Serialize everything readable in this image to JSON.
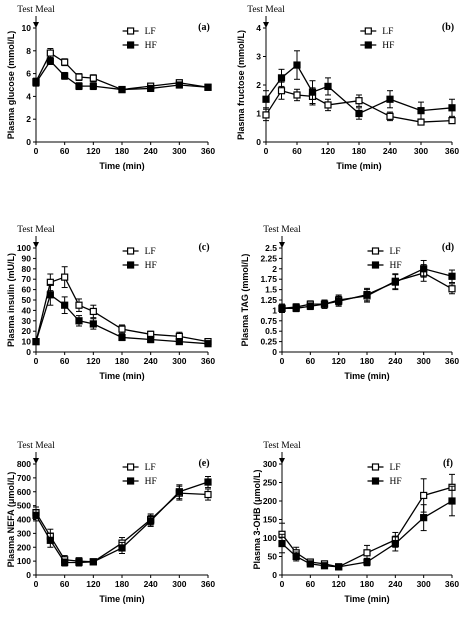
{
  "chart_data": [
    {
      "panel_label": "(a)",
      "type": "line",
      "test_meal_label": "Test Meal",
      "xlabel": "Time (min)",
      "ylabel": "Plasma glucose (mmol/L)",
      "xlim": [
        0,
        360
      ],
      "ylim": [
        0,
        10
      ],
      "xticks": [
        0,
        60,
        120,
        180,
        240,
        300,
        360
      ],
      "yticks": [
        0,
        2,
        4,
        6,
        8,
        10
      ],
      "x": [
        0,
        30,
        60,
        90,
        120,
        180,
        240,
        300,
        360
      ],
      "series": [
        {
          "name": "LF",
          "marker": "open-square",
          "values": [
            5.3,
            7.8,
            7.0,
            5.7,
            5.6,
            4.6,
            4.9,
            5.2,
            4.8
          ],
          "errors": [
            0.3,
            0.4,
            0.3,
            0.3,
            0.3,
            0.2,
            0.2,
            0.2,
            0.2
          ]
        },
        {
          "name": "HF",
          "marker": "filled-square",
          "values": [
            5.2,
            7.1,
            5.8,
            4.9,
            4.9,
            4.6,
            4.7,
            5.0,
            4.8
          ],
          "errors": [
            0.3,
            0.3,
            0.3,
            0.3,
            0.3,
            0.2,
            0.2,
            0.2,
            0.2
          ]
        }
      ]
    },
    {
      "panel_label": "(b)",
      "type": "line",
      "test_meal_label": "Test Meal",
      "xlabel": "Time (min)",
      "ylabel": "Plasma fructose (mmol/L)",
      "xlim": [
        0,
        360
      ],
      "ylim": [
        0,
        4
      ],
      "xticks": [
        0,
        60,
        120,
        180,
        240,
        300,
        360
      ],
      "yticks": [
        0,
        1,
        2,
        3,
        4
      ],
      "x": [
        0,
        30,
        60,
        90,
        120,
        180,
        240,
        300,
        360
      ],
      "series": [
        {
          "name": "LF",
          "marker": "open-square",
          "values": [
            0.95,
            1.8,
            1.65,
            1.6,
            1.3,
            1.45,
            0.9,
            0.7,
            0.75
          ],
          "errors": [
            0.2,
            0.3,
            0.2,
            0.3,
            0.2,
            0.2,
            0.15,
            0.1,
            0.1
          ]
        },
        {
          "name": "HF",
          "marker": "filled-square",
          "values": [
            1.5,
            2.25,
            2.7,
            1.75,
            1.95,
            1.0,
            1.5,
            1.1,
            1.2
          ],
          "errors": [
            0.3,
            0.3,
            0.5,
            0.4,
            0.3,
            0.2,
            0.3,
            0.3,
            0.3
          ]
        }
      ]
    },
    {
      "panel_label": "(c)",
      "type": "line",
      "test_meal_label": "Test Meal",
      "xlabel": "Time (min)",
      "ylabel": "Plasma insulin (mU/L)",
      "xlim": [
        0,
        360
      ],
      "ylim": [
        0,
        100
      ],
      "xticks": [
        0,
        60,
        120,
        180,
        240,
        300,
        360
      ],
      "yticks": [
        0,
        10,
        20,
        30,
        40,
        50,
        60,
        70,
        80,
        90,
        100
      ],
      "x": [
        0,
        30,
        60,
        90,
        120,
        180,
        240,
        300,
        360
      ],
      "series": [
        {
          "name": "LF",
          "marker": "open-square",
          "values": [
            10,
            67,
            72,
            45,
            39,
            22,
            17,
            15,
            10
          ],
          "errors": [
            2,
            8,
            10,
            6,
            6,
            4,
            3,
            4,
            2
          ]
        },
        {
          "name": "HF",
          "marker": "filled-square",
          "values": [
            10,
            55,
            45,
            30,
            27,
            14,
            12,
            10,
            8
          ],
          "errors": [
            2,
            10,
            8,
            5,
            5,
            3,
            3,
            2,
            2
          ]
        }
      ]
    },
    {
      "panel_label": "(d)",
      "type": "line",
      "test_meal_label": "Test Meal",
      "xlabel": "Time (min)",
      "ylabel": "Plasma TAG (mmol/L)",
      "xlim": [
        0,
        360
      ],
      "ylim": [
        0,
        2.5
      ],
      "xticks": [
        0,
        60,
        120,
        180,
        240,
        300,
        360
      ],
      "yticks": [
        0,
        0.25,
        0.5,
        0.75,
        1.0,
        1.25,
        1.5,
        1.75,
        2.0,
        2.25,
        2.5
      ],
      "ytick_labels": [
        "0",
        "0.25",
        "0.5",
        "0.75",
        "1",
        "1.25",
        "1.5",
        "1.75",
        "2",
        "2.25",
        "2.5"
      ],
      "x": [
        0,
        30,
        60,
        90,
        120,
        180,
        240,
        300,
        360
      ],
      "series": [
        {
          "name": "LF",
          "marker": "open-square",
          "values": [
            1.05,
            1.08,
            1.15,
            1.15,
            1.25,
            1.35,
            1.7,
            1.9,
            1.52
          ],
          "errors": [
            0.1,
            0.08,
            0.08,
            0.1,
            0.12,
            0.15,
            0.18,
            0.2,
            0.12
          ]
        },
        {
          "name": "HF",
          "marker": "filled-square",
          "values": [
            1.05,
            1.05,
            1.1,
            1.15,
            1.22,
            1.38,
            1.68,
            2.0,
            1.82
          ],
          "errors": [
            0.1,
            0.08,
            0.08,
            0.1,
            0.12,
            0.15,
            0.18,
            0.2,
            0.15
          ]
        }
      ]
    },
    {
      "panel_label": "(e)",
      "type": "line",
      "test_meal_label": "Test Meal",
      "xlabel": "Time (min)",
      "ylabel": "Plasma NEFA (μmol/L)",
      "xlim": [
        0,
        360
      ],
      "ylim": [
        0,
        800
      ],
      "xticks": [
        0,
        60,
        120,
        180,
        240,
        300,
        360
      ],
      "yticks": [
        0,
        100,
        200,
        300,
        400,
        500,
        600,
        700,
        800
      ],
      "x": [
        0,
        30,
        60,
        90,
        120,
        180,
        240,
        300,
        360
      ],
      "series": [
        {
          "name": "LF",
          "marker": "open-square",
          "values": [
            450,
            280,
            110,
            100,
            95,
            230,
            400,
            590,
            580
          ],
          "errors": [
            40,
            50,
            30,
            25,
            20,
            40,
            40,
            50,
            40
          ]
        },
        {
          "name": "HF",
          "marker": "filled-square",
          "values": [
            430,
            250,
            90,
            90,
            95,
            195,
            390,
            600,
            670
          ],
          "errors": [
            40,
            50,
            25,
            25,
            20,
            40,
            40,
            50,
            40
          ]
        }
      ]
    },
    {
      "panel_label": "(f)",
      "type": "line",
      "test_meal_label": "Test Meal",
      "xlabel": "Time (min)",
      "ylabel": "Plasma 3-OHB (μmol/L)",
      "xlim": [
        0,
        360
      ],
      "ylim": [
        0,
        300
      ],
      "xticks": [
        0,
        60,
        120,
        180,
        240,
        300,
        360
      ],
      "yticks": [
        0,
        50,
        100,
        150,
        200,
        250,
        300
      ],
      "x": [
        0,
        30,
        60,
        90,
        120,
        180,
        240,
        300,
        360
      ],
      "series": [
        {
          "name": "LF",
          "marker": "open-square",
          "values": [
            110,
            60,
            35,
            30,
            22,
            60,
            95,
            215,
            237
          ],
          "errors": [
            30,
            15,
            8,
            8,
            4,
            20,
            20,
            45,
            35
          ]
        },
        {
          "name": "HF",
          "marker": "filled-square",
          "values": [
            85,
            50,
            30,
            25,
            22,
            35,
            85,
            155,
            200
          ],
          "errors": [
            25,
            12,
            8,
            6,
            4,
            10,
            20,
            35,
            40
          ]
        }
      ]
    }
  ]
}
